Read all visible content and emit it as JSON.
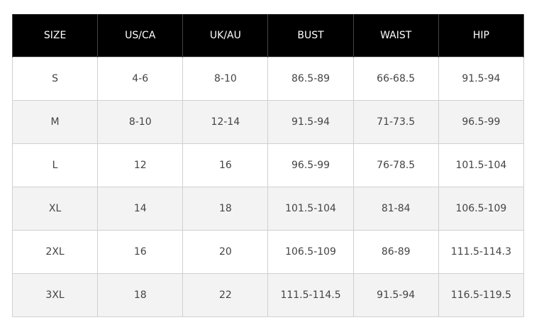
{
  "table": {
    "header": [
      "SIZE",
      "US/CA",
      "UK/AU",
      "BUST",
      "WAIST",
      "HIP"
    ],
    "rows": [
      [
        "S",
        "4-6",
        "8-10",
        "86.5-89",
        "66-68.5",
        "91.5-94"
      ],
      [
        "M",
        "8-10",
        "12-14",
        "91.5-94",
        "71-73.5",
        "96.5-99"
      ],
      [
        "L",
        "12",
        "16",
        "96.5-99",
        "76-78.5",
        "101.5-104"
      ],
      [
        "XL",
        "14",
        "18",
        "101.5-104",
        "81-84",
        "106.5-109"
      ],
      [
        "2XL",
        "16",
        "20",
        "106.5-109",
        "86-89",
        "111.5-114.3"
      ],
      [
        "3XL",
        "18",
        "22",
        "111.5-114.5",
        "91.5-94",
        "116.5-119.5"
      ]
    ]
  }
}
